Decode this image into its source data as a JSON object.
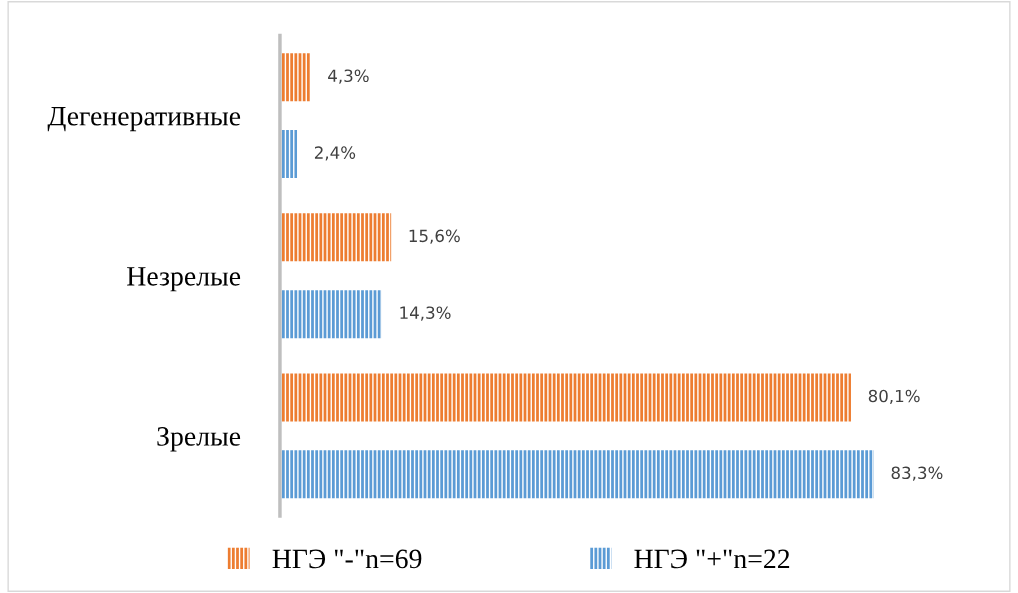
{
  "chart_data": {
    "type": "bar",
    "orientation": "horizontal",
    "categories": [
      "Дегенеративные",
      "Незрелые",
      "Зрелые"
    ],
    "series": [
      {
        "name": "НГЭ \"-\"n=69",
        "color": "#ed7d31",
        "values": [
          4.3,
          15.6,
          80.1
        ],
        "value_labels": [
          "4,3%",
          "15,6%",
          "80,1%"
        ]
      },
      {
        "name": "НГЭ \"+\"n=22",
        "color": "#5b9bd5",
        "values": [
          2.4,
          14.3,
          83.3
        ],
        "value_labels": [
          "2,4%",
          "14,3%",
          "83,3%"
        ]
      }
    ],
    "tick_labels": "y",
    "grid": false,
    "legend": "bottom"
  }
}
